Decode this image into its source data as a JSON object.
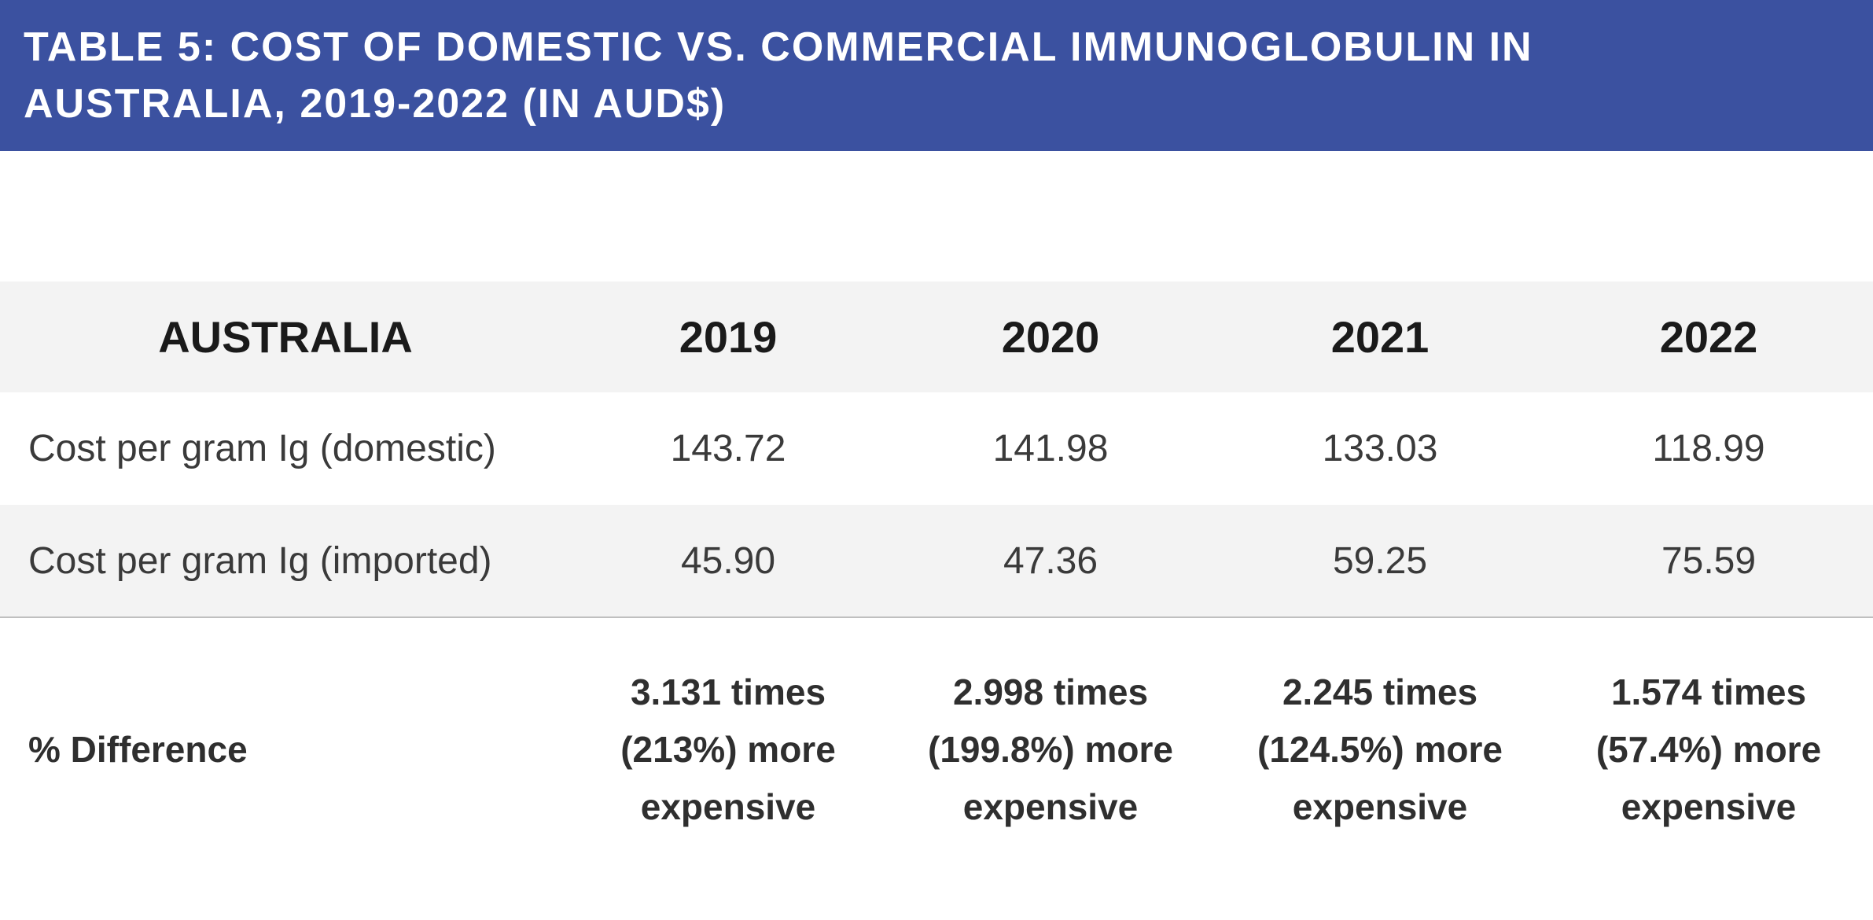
{
  "title": "TABLE 5: COST OF DOMESTIC VS. COMMERCIAL IMMUNOGLOBULIN IN AUSTRALIA, 2019-2022 (IN AUD$)",
  "colors": {
    "banner": "#3b51a0",
    "row_shade": "#f3f3f3"
  },
  "table": {
    "headers": [
      "AUSTRALIA",
      "2019",
      "2020",
      "2021",
      "2022"
    ],
    "rows": [
      {
        "label": "Cost per gram Ig (domestic)",
        "values": [
          "143.72",
          "141.98",
          "133.03",
          "118.99"
        ]
      },
      {
        "label": "Cost per gram Ig (imported)",
        "values": [
          "45.90",
          "47.36",
          "59.25",
          "75.59"
        ]
      }
    ],
    "difference": {
      "label": "% Difference",
      "values": [
        "3.131 times (213%) more expensive",
        "2.998 times (199.8%) more expensive",
        "2.245 times (124.5%) more expensive",
        "1.574 times (57.4%) more expensive"
      ]
    }
  }
}
